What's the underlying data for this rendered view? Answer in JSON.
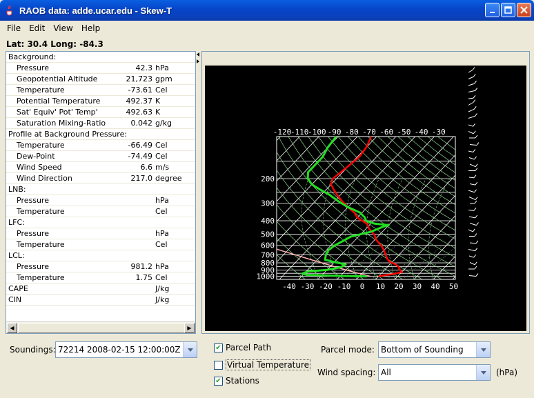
{
  "window": {
    "title": "RAOB data: adde.ucar.edu - Skew-T"
  },
  "menu": {
    "file": "File",
    "edit": "Edit",
    "view": "View",
    "help": "Help"
  },
  "location": {
    "text": "Lat: 30.4  Long: -84.3"
  },
  "table": {
    "rows": [
      {
        "label": "Background:",
        "value": "",
        "unit": "",
        "type": "header"
      },
      {
        "label": "Pressure",
        "value": "42.3",
        "unit": "hPa",
        "type": "child"
      },
      {
        "label": "Geopotential Altitude",
        "value": "21,723",
        "unit": "gpm",
        "type": "child"
      },
      {
        "label": "Temperature",
        "value": "-73.61",
        "unit": "Cel",
        "type": "child"
      },
      {
        "label": "Potential Temperature",
        "value": "492.37",
        "unit": "K",
        "type": "child"
      },
      {
        "label": "Sat' Equiv' Pot' Temp'",
        "value": "492.63",
        "unit": "K",
        "type": "child"
      },
      {
        "label": "Saturation Mixing-Ratio",
        "value": "0.042",
        "unit": "g/kg",
        "type": "child"
      },
      {
        "label": "Profile at Background Pressure:",
        "value": "",
        "unit": "",
        "type": "header"
      },
      {
        "label": "Temperature",
        "value": "-66.49",
        "unit": "Cel",
        "type": "child"
      },
      {
        "label": "Dew-Point",
        "value": "-74.49",
        "unit": "Cel",
        "type": "child"
      },
      {
        "label": "Wind Speed",
        "value": "6.6",
        "unit": "m/s",
        "type": "child"
      },
      {
        "label": "Wind Direction",
        "value": "217.0",
        "unit": "degree",
        "type": "child"
      },
      {
        "label": "LNB:",
        "value": "",
        "unit": "",
        "type": "header"
      },
      {
        "label": "Pressure",
        "value": "",
        "unit": "hPa",
        "type": "child"
      },
      {
        "label": "Temperature",
        "value": "",
        "unit": "Cel",
        "type": "child"
      },
      {
        "label": "LFC:",
        "value": "",
        "unit": "",
        "type": "header"
      },
      {
        "label": "Pressure",
        "value": "",
        "unit": "hPa",
        "type": "child"
      },
      {
        "label": "Temperature",
        "value": "",
        "unit": "Cel",
        "type": "child"
      },
      {
        "label": "LCL:",
        "value": "",
        "unit": "",
        "type": "header"
      },
      {
        "label": "Pressure",
        "value": "981.2",
        "unit": "hPa",
        "type": "child"
      },
      {
        "label": "Temperature",
        "value": "1.75",
        "unit": "Cel",
        "type": "child"
      },
      {
        "label": "CAPE",
        "value": "",
        "unit": "J/kg",
        "type": "header"
      },
      {
        "label": "CIN",
        "value": "",
        "unit": "J/kg",
        "type": "header"
      }
    ]
  },
  "skewt": {
    "temp_ticks": [
      "-120",
      "-110",
      "-100",
      "-90",
      "-80",
      "-70",
      "-60",
      "-50",
      "-40",
      "-30"
    ],
    "bottom_ticks": [
      "-40",
      "-30",
      "-20",
      "-10",
      "0",
      "10",
      "20",
      "30",
      "40",
      "50"
    ],
    "pressure_ticks": [
      "200",
      "300",
      "400",
      "500",
      "600",
      "700",
      "800",
      "900",
      "1000"
    ],
    "colors": {
      "temperature": "#ff0000",
      "dewpoint": "#22dd22",
      "parcel": "#ffb0b0",
      "background": "#000000",
      "grid": "#ffffff",
      "lines": "#8bd88b"
    }
  },
  "controls": {
    "soundings_label": "Soundings:",
    "soundings_value": "72214 2008-02-15 12:00:00Z",
    "parcel_path_label": "Parcel Path",
    "parcel_path_checked": true,
    "virtual_temp_label": "Virtual Temperature",
    "virtual_temp_checked": false,
    "stations_label": "Stations",
    "stations_checked": true,
    "parcel_mode_label": "Parcel mode:",
    "parcel_mode_value": "Bottom of Sounding",
    "wind_spacing_label": "Wind spacing:",
    "wind_spacing_value": "All",
    "wind_spacing_unit": "(hPa)"
  }
}
